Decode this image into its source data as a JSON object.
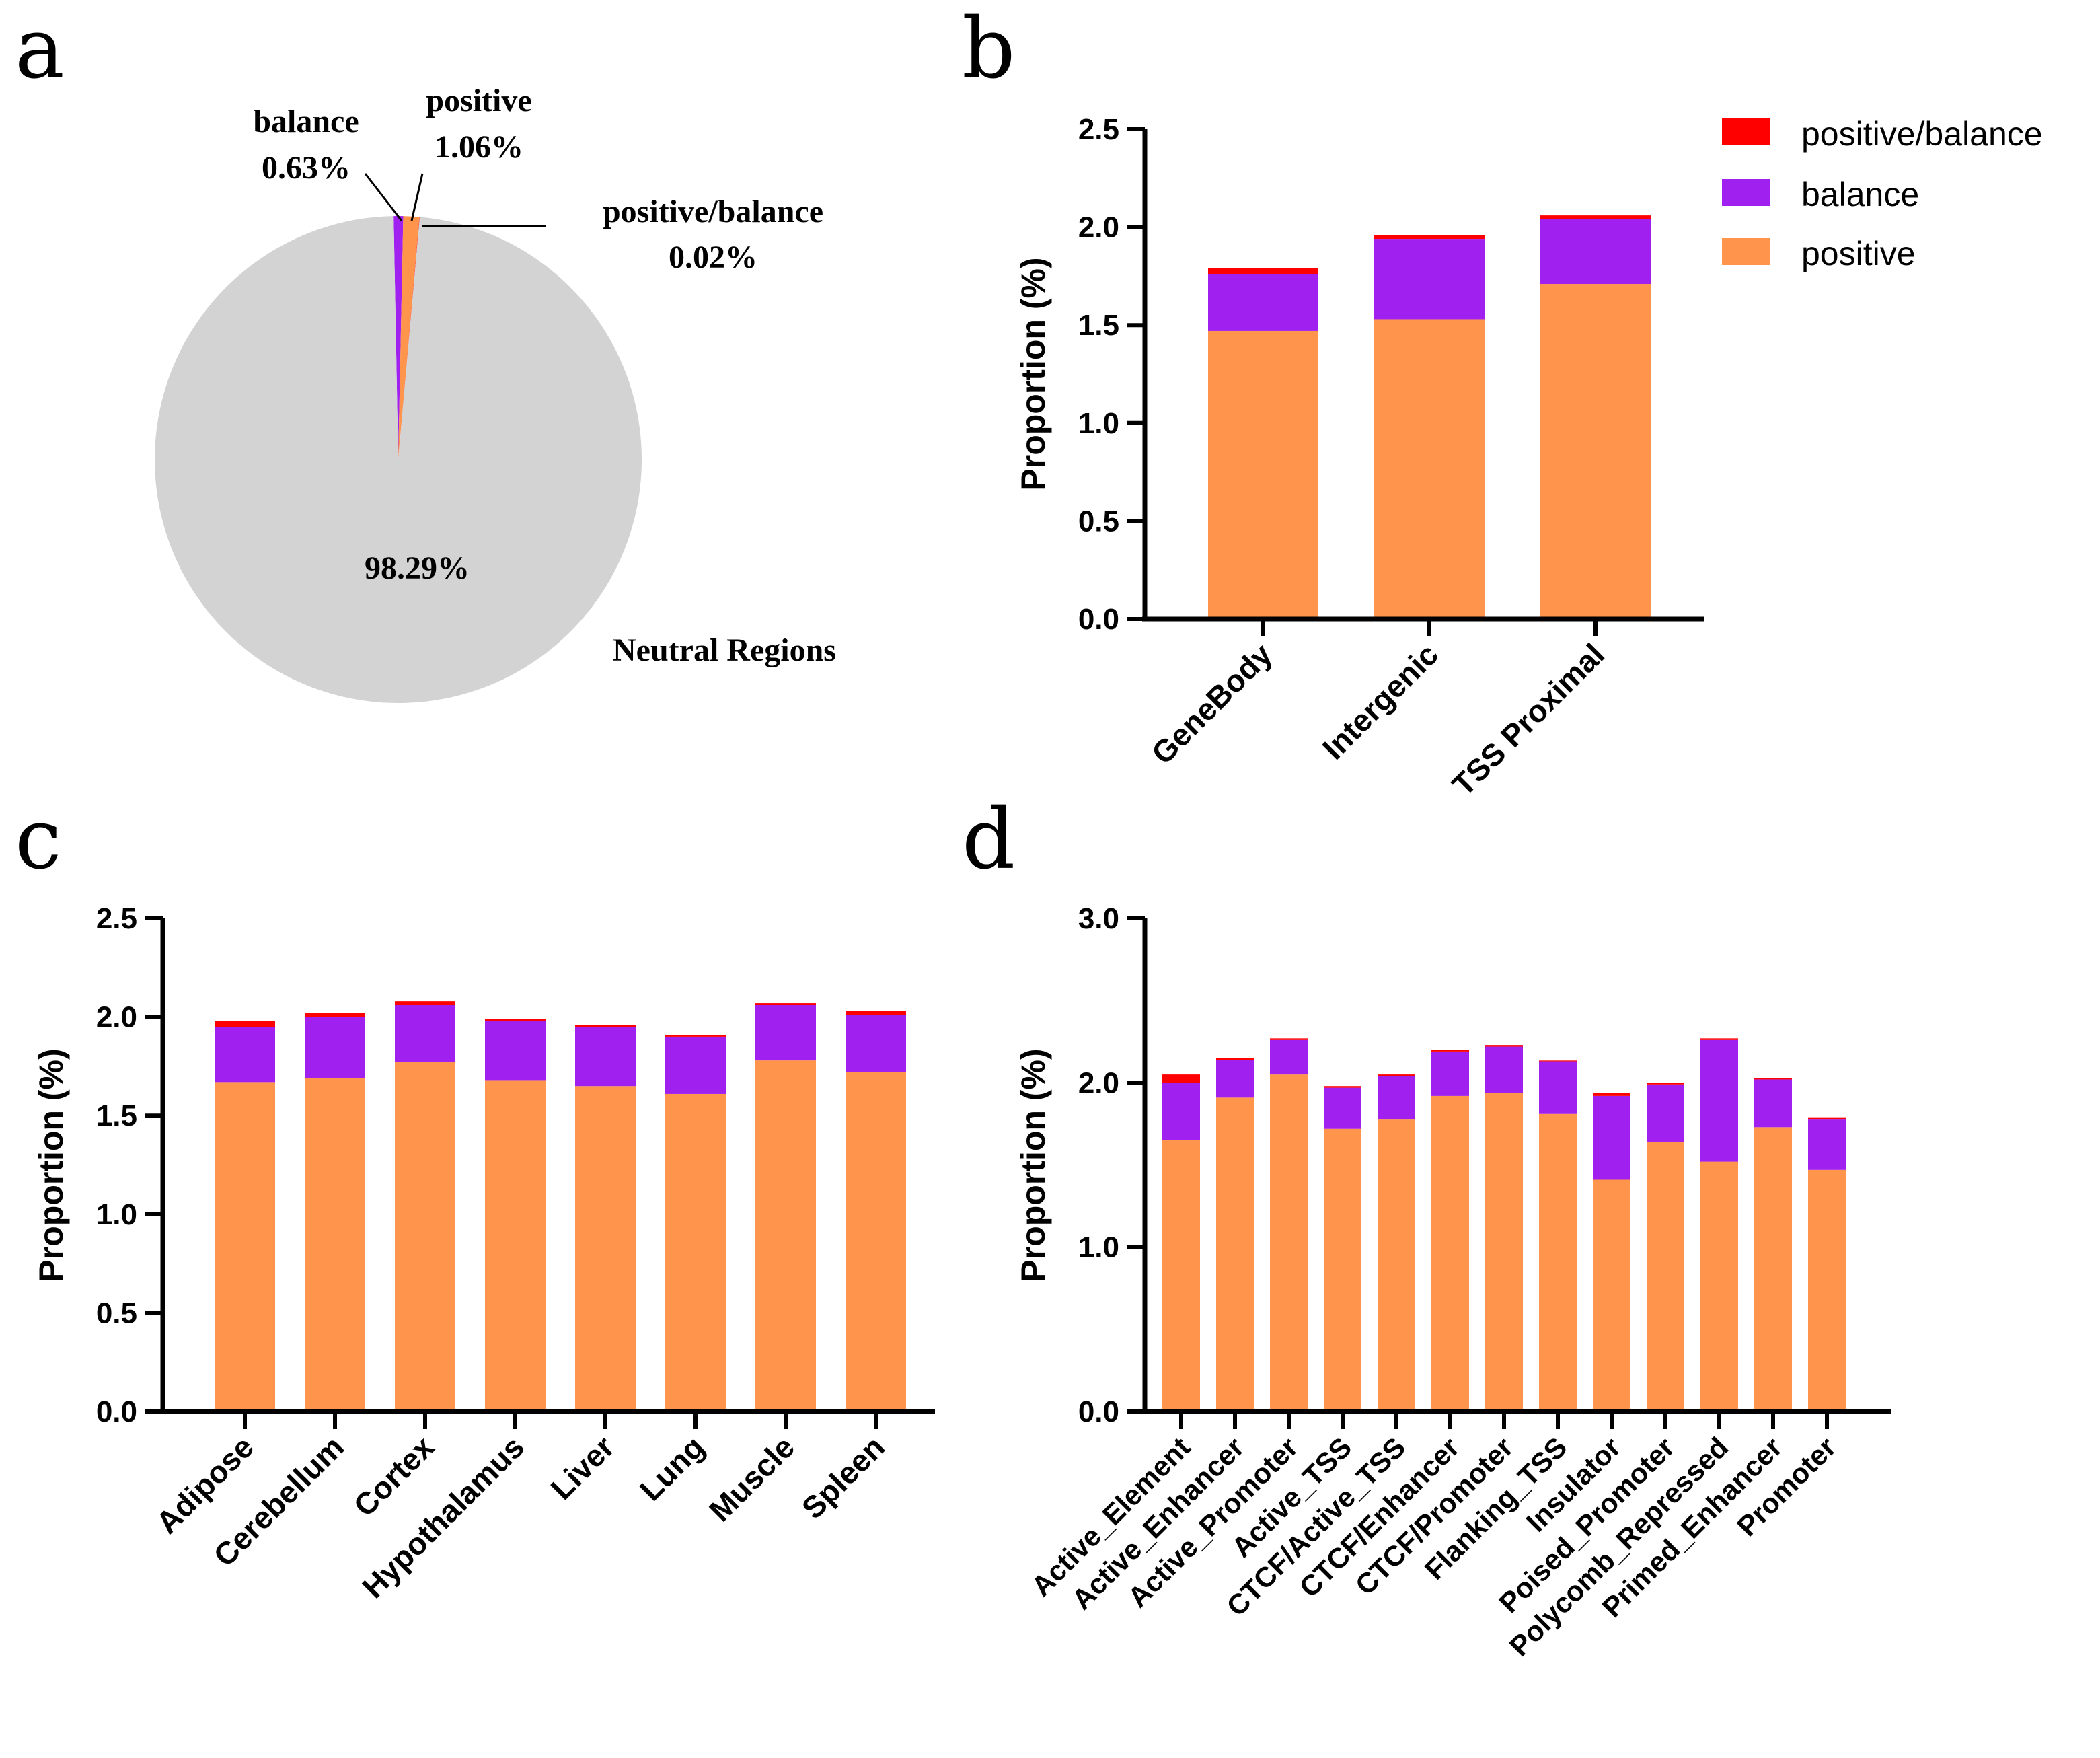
{
  "colors": {
    "positive": "#FF944D",
    "balance": "#A020F0",
    "positive_balance": "#FF0000",
    "neutral": "#D3D3D3"
  },
  "panels": {
    "a": "a",
    "b": "b",
    "c": "c",
    "d": "d"
  },
  "chart_data": [
    {
      "panel": "a",
      "type": "pie",
      "slices": [
        {
          "name": "balance",
          "value": 0.63,
          "label": "balance",
          "pct_label": "0.63%"
        },
        {
          "name": "positive",
          "value": 1.06,
          "label": "positive",
          "pct_label": "1.06%"
        },
        {
          "name": "positive/balance",
          "value": 0.02,
          "label": "positive/balance",
          "pct_label": "0.02%"
        },
        {
          "name": "Neutral Regions",
          "value": 98.29,
          "label": "Neutral Regions",
          "pct_label": "98.29%"
        }
      ]
    },
    {
      "panel": "b",
      "type": "bar",
      "stacked": true,
      "ylabel": "Proportion (%)",
      "ylim": [
        0,
        2.5
      ],
      "yticks": [
        "0.0",
        "0.5",
        "1.0",
        "1.5",
        "2.0",
        "2.5"
      ],
      "categories": [
        "GeneBody",
        "Intergenic",
        "TSS Proximal"
      ],
      "series": [
        {
          "name": "positive",
          "values": [
            1.47,
            1.53,
            1.71
          ]
        },
        {
          "name": "balance",
          "values": [
            0.29,
            0.41,
            0.33
          ]
        },
        {
          "name": "positive/balance",
          "values": [
            0.03,
            0.02,
            0.02
          ]
        }
      ],
      "legend": {
        "position": "top-right",
        "entries": [
          "positive/balance",
          "balance",
          "positive"
        ]
      }
    },
    {
      "panel": "c",
      "type": "bar",
      "stacked": true,
      "ylabel": "Proportion (%)",
      "ylim": [
        0,
        2.5
      ],
      "yticks": [
        "0.0",
        "0.5",
        "1.0",
        "1.5",
        "2.0",
        "2.5"
      ],
      "categories": [
        "Adipose",
        "Cerebellum",
        "Cortex",
        "Hypothalamus",
        "Liver",
        "Lung",
        "Muscle",
        "Spleen"
      ],
      "series": [
        {
          "name": "positive",
          "values": [
            1.67,
            1.69,
            1.77,
            1.68,
            1.65,
            1.61,
            1.78,
            1.72
          ]
        },
        {
          "name": "balance",
          "values": [
            0.28,
            0.31,
            0.29,
            0.3,
            0.3,
            0.29,
            0.28,
            0.29
          ]
        },
        {
          "name": "positive/balance",
          "values": [
            0.03,
            0.02,
            0.02,
            0.01,
            0.01,
            0.01,
            0.01,
            0.02
          ]
        }
      ]
    },
    {
      "panel": "d",
      "type": "bar",
      "stacked": true,
      "ylabel": "Proportion (%)",
      "ylim": [
        0,
        3.0
      ],
      "yticks": [
        "0.0",
        "1.0",
        "2.0",
        "3.0"
      ],
      "categories": [
        "Active_Element",
        "Active_Enhancer",
        "Active_Promoter",
        "Active_TSS",
        "CTCF/Active_TSS",
        "CTCF/Enhancer",
        "CTCF/Promoter",
        "Flanking_TSS",
        "Insulator",
        "Poised_Promoter",
        "Polycomb_Repressed",
        "Primed_Enhancer",
        "Promoter"
      ],
      "series": [
        {
          "name": "positive",
          "values": [
            1.65,
            1.91,
            2.05,
            1.72,
            1.78,
            1.92,
            1.94,
            1.81,
            1.41,
            1.64,
            1.52,
            1.73,
            1.47
          ]
        },
        {
          "name": "balance",
          "values": [
            0.35,
            0.23,
            0.21,
            0.25,
            0.26,
            0.27,
            0.28,
            0.32,
            0.51,
            0.35,
            0.74,
            0.29,
            0.31
          ]
        },
        {
          "name": "positive/balance",
          "values": [
            0.05,
            0.01,
            0.01,
            0.01,
            0.01,
            0.01,
            0.01,
            0.005,
            0.02,
            0.01,
            0.01,
            0.01,
            0.01
          ]
        }
      ]
    }
  ]
}
